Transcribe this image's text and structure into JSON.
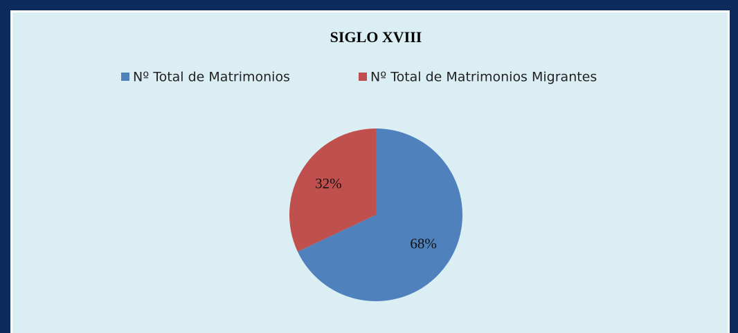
{
  "chart_data": {
    "type": "pie",
    "title": "SIGLO XVIII",
    "categories": [
      "Nº Total de Matrimonios",
      "Nº Total de Matrimonios Migrantes"
    ],
    "values": [
      68,
      32
    ],
    "value_labels": [
      "68%",
      "32%"
    ],
    "colors": [
      "#4f81bd",
      "#c0504d"
    ],
    "legend": "top"
  }
}
